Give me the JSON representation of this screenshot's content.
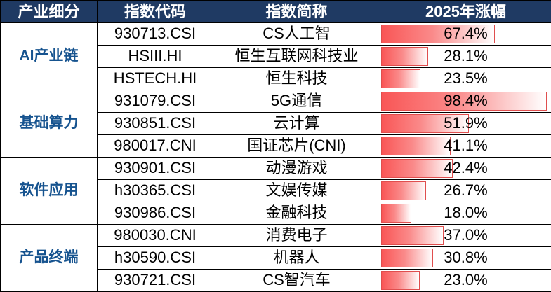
{
  "header": {
    "columns": [
      "产业细分",
      "指数代码",
      "指数简称",
      "2025年涨幅"
    ]
  },
  "groups": [
    {
      "category": "AI产业链",
      "rows": [
        {
          "code": "930713.CSI",
          "name": "CS人工智",
          "change_pct": 67.4,
          "change_label": "67.4%"
        },
        {
          "code": "HSIII.HI",
          "name": "恒生互联网科技业",
          "change_pct": 28.1,
          "change_label": "28.1%"
        },
        {
          "code": "HSTECH.HI",
          "name": "恒生科技",
          "change_pct": 23.5,
          "change_label": "23.5%"
        }
      ]
    },
    {
      "category": "基础算力",
      "rows": [
        {
          "code": "931079.CSI",
          "name": "5G通信",
          "change_pct": 98.4,
          "change_label": "98.4%"
        },
        {
          "code": "930851.CSI",
          "name": "云计算",
          "change_pct": 51.9,
          "change_label": "51.9%"
        },
        {
          "code": "980017.CNI",
          "name": "国证芯片(CNI)",
          "change_pct": 41.1,
          "change_label": "41.1%"
        }
      ]
    },
    {
      "category": "软件应用",
      "rows": [
        {
          "code": "930901.CSI",
          "name": "动漫游戏",
          "change_pct": 42.4,
          "change_label": "42.4%"
        },
        {
          "code": "h30365.CSI",
          "name": "文娱传媒",
          "change_pct": 26.7,
          "change_label": "26.7%"
        },
        {
          "code": "930986.CSI",
          "name": "金融科技",
          "change_pct": 18.0,
          "change_label": "18.0%"
        }
      ]
    },
    {
      "category": "产品终端",
      "rows": [
        {
          "code": "980030.CNI",
          "name": "消费电子",
          "change_pct": 37.0,
          "change_label": "37.0%"
        },
        {
          "code": "h30590.CSI",
          "name": "机器人",
          "change_pct": 30.8,
          "change_label": "30.8%"
        },
        {
          "code": "930721.CSI",
          "name": "CS智汽车",
          "change_pct": 23.0,
          "change_label": "23.0%"
        }
      ]
    }
  ],
  "colors": {
    "header_bg": "#1F3A63",
    "header_text": "#ffffff",
    "category_text": "#16538f",
    "body_text": "#000000",
    "bar_fill_left": "#f95656",
    "bar_fill_mid": "#fa8a8a",
    "bar_fill_right": "#ffffff",
    "bar_border": "#e04e4e",
    "grid": "#000000"
  },
  "chart_data": {
    "type": "bar",
    "title": "2025年涨幅",
    "xlabel": "",
    "ylabel": "2025年涨幅 (%)",
    "xlim": [
      0,
      100
    ],
    "legend": false,
    "grid": false,
    "categories": [
      "CS人工智",
      "恒生互联网科技业",
      "恒生科技",
      "5G通信",
      "云计算",
      "国证芯片(CNI)",
      "动漫游戏",
      "文娱传媒",
      "金融科技",
      "消费电子",
      "机器人",
      "CS智汽车"
    ],
    "values": [
      67.4,
      28.1,
      23.5,
      98.4,
      51.9,
      41.1,
      42.4,
      26.7,
      18.0,
      37.0,
      30.8,
      23.0
    ],
    "series_groups": [
      "AI产业链",
      "AI产业链",
      "AI产业链",
      "基础算力",
      "基础算力",
      "基础算力",
      "软件应用",
      "软件应用",
      "软件应用",
      "产品终端",
      "产品终端",
      "产品终端"
    ],
    "index_codes": [
      "930713.CSI",
      "HSIII.HI",
      "HSTECH.HI",
      "931079.CSI",
      "930851.CSI",
      "980017.CNI",
      "930901.CSI",
      "h30365.CSI",
      "930986.CSI",
      "980030.CNI",
      "h30590.CSI",
      "930721.CSI"
    ]
  }
}
